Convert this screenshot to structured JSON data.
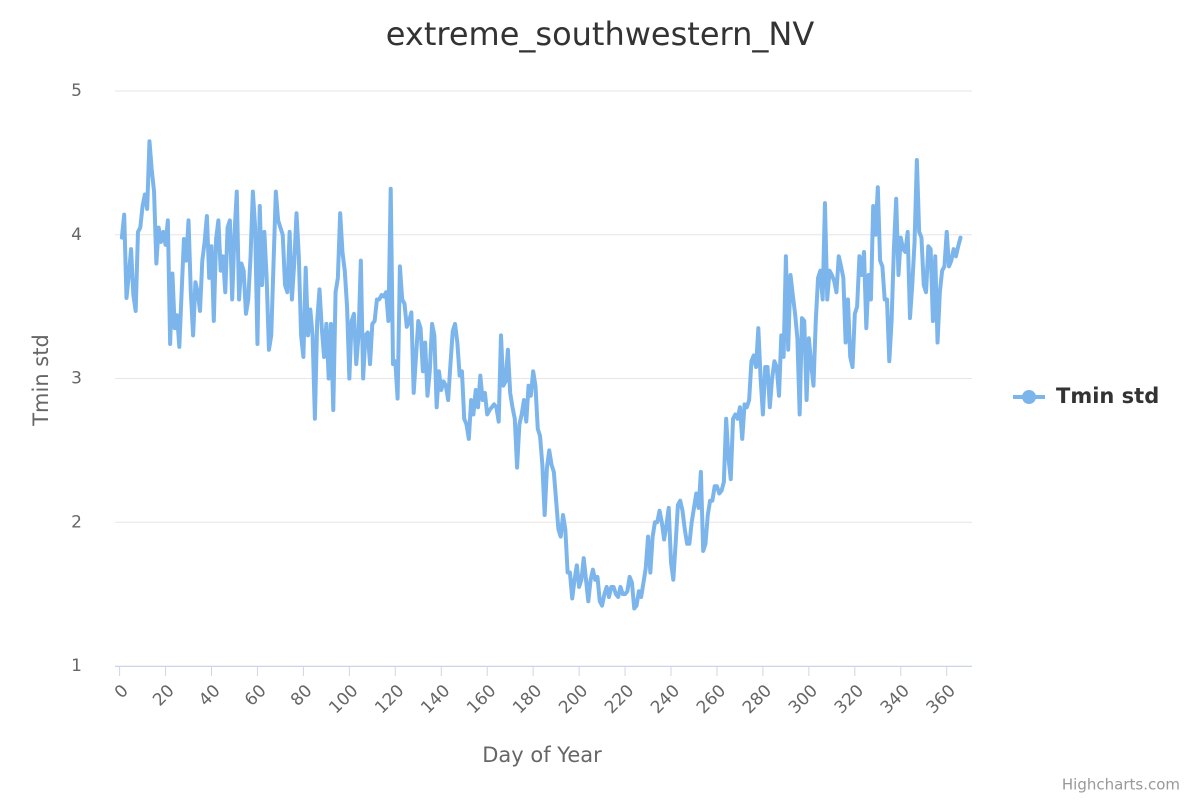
{
  "chart_data": {
    "type": "line",
    "title": "extreme_southwestern_NV",
    "x_label": "Day of Year",
    "y_label": "Tmin std",
    "credits": "Highcharts.com",
    "xlim": [
      -2,
      371
    ],
    "ylim": [
      1,
      5
    ],
    "xticks": [
      0,
      20,
      40,
      60,
      80,
      100,
      120,
      140,
      160,
      180,
      200,
      220,
      240,
      260,
      280,
      300,
      320,
      340,
      360
    ],
    "yticks": [
      1,
      2,
      3,
      4,
      5
    ],
    "grid": true,
    "legend": "right",
    "x": [
      1,
      2,
      3,
      4,
      5,
      6,
      7,
      8,
      9,
      10,
      11,
      12,
      13,
      14,
      15,
      16,
      17,
      18,
      19,
      20,
      21,
      22,
      23,
      24,
      25,
      26,
      27,
      28,
      29,
      30,
      31,
      32,
      33,
      34,
      35,
      36,
      37,
      38,
      39,
      40,
      41,
      42,
      43,
      44,
      45,
      46,
      47,
      48,
      49,
      50,
      51,
      52,
      53,
      54,
      55,
      56,
      57,
      58,
      59,
      60,
      61,
      62,
      63,
      64,
      65,
      66,
      67,
      68,
      69,
      70,
      71,
      72,
      73,
      74,
      75,
      76,
      77,
      78,
      79,
      80,
      81,
      82,
      83,
      84,
      85,
      86,
      87,
      88,
      89,
      90,
      91,
      92,
      93,
      94,
      95,
      96,
      97,
      98,
      99,
      100,
      101,
      102,
      103,
      104,
      105,
      106,
      107,
      108,
      109,
      110,
      111,
      112,
      113,
      114,
      115,
      116,
      117,
      118,
      119,
      120,
      121,
      122,
      123,
      124,
      125,
      126,
      127,
      128,
      129,
      130,
      131,
      132,
      133,
      134,
      135,
      136,
      137,
      138,
      139,
      140,
      141,
      142,
      143,
      144,
      145,
      146,
      147,
      148,
      149,
      150,
      151,
      152,
      153,
      154,
      155,
      156,
      157,
      158,
      159,
      160,
      161,
      162,
      163,
      164,
      165,
      166,
      167,
      168,
      169,
      170,
      171,
      172,
      173,
      174,
      175,
      176,
      177,
      178,
      179,
      180,
      181,
      182,
      183,
      184,
      185,
      186,
      187,
      188,
      189,
      190,
      191,
      192,
      193,
      194,
      195,
      196,
      197,
      198,
      199,
      200,
      201,
      202,
      203,
      204,
      205,
      206,
      207,
      208,
      209,
      210,
      211,
      212,
      213,
      214,
      215,
      216,
      217,
      218,
      219,
      220,
      221,
      222,
      223,
      224,
      225,
      226,
      227,
      228,
      229,
      230,
      231,
      232,
      233,
      234,
      235,
      236,
      237,
      238,
      239,
      240,
      241,
      242,
      243,
      244,
      245,
      246,
      247,
      248,
      249,
      250,
      251,
      252,
      253,
      254,
      255,
      256,
      257,
      258,
      259,
      260,
      261,
      262,
      263,
      264,
      265,
      266,
      267,
      268,
      269,
      270,
      271,
      272,
      273,
      274,
      275,
      276,
      277,
      278,
      279,
      280,
      281,
      282,
      283,
      284,
      285,
      286,
      287,
      288,
      289,
      290,
      291,
      292,
      293,
      294,
      295,
      296,
      297,
      298,
      299,
      300,
      301,
      302,
      303,
      304,
      305,
      306,
      307,
      308,
      309,
      310,
      311,
      312,
      313,
      314,
      315,
      316,
      317,
      318,
      319,
      320,
      321,
      322,
      323,
      324,
      325,
      326,
      327,
      328,
      329,
      330,
      331,
      332,
      333,
      334,
      335,
      336,
      337,
      338,
      339,
      340,
      341,
      342,
      343,
      344,
      345,
      346,
      347,
      348,
      349,
      350,
      351,
      352,
      353,
      354,
      355,
      356,
      357,
      358,
      359,
      360,
      361,
      362,
      363,
      364,
      365,
      366
    ],
    "series": [
      {
        "name": "Tmin std",
        "color": "#7cb5ec",
        "values": [
          3.98,
          4.14,
          3.56,
          3.72,
          3.9,
          3.58,
          3.47,
          4.02,
          4.05,
          4.2,
          4.28,
          4.18,
          4.65,
          4.45,
          4.3,
          3.8,
          4.05,
          3.95,
          4.02,
          3.93,
          4.1,
          3.24,
          3.73,
          3.35,
          3.44,
          3.22,
          3.6,
          3.97,
          3.82,
          4.1,
          3.6,
          3.3,
          3.67,
          3.6,
          3.47,
          3.82,
          3.95,
          4.13,
          3.7,
          3.92,
          3.4,
          3.97,
          4.1,
          3.75,
          3.85,
          3.6,
          4.05,
          4.1,
          3.55,
          4.0,
          4.3,
          3.55,
          3.8,
          3.75,
          3.45,
          3.55,
          3.85,
          4.3,
          4.05,
          3.24,
          4.2,
          3.65,
          4.02,
          3.7,
          3.2,
          3.3,
          3.8,
          4.3,
          4.1,
          4.05,
          4.0,
          3.65,
          3.6,
          4.02,
          3.55,
          3.8,
          4.15,
          3.85,
          3.3,
          3.15,
          3.77,
          3.3,
          3.48,
          3.3,
          2.72,
          3.4,
          3.62,
          3.35,
          3.15,
          3.38,
          3.0,
          3.38,
          2.78,
          3.6,
          3.7,
          4.15,
          3.88,
          3.75,
          3.5,
          3.0,
          3.4,
          3.45,
          3.1,
          3.3,
          3.82,
          3.0,
          3.3,
          3.32,
          3.1,
          3.38,
          3.4,
          3.55,
          3.55,
          3.58,
          3.57,
          3.6,
          3.4,
          4.32,
          3.1,
          3.12,
          2.86,
          3.78,
          3.55,
          3.52,
          3.36,
          3.4,
          3.46,
          2.9,
          3.15,
          3.4,
          3.35,
          3.05,
          3.25,
          2.88,
          3.05,
          3.38,
          3.3,
          2.8,
          3.05,
          2.92,
          2.98,
          2.95,
          2.85,
          3.1,
          3.33,
          3.38,
          3.25,
          3.02,
          3.05,
          2.72,
          2.68,
          2.58,
          2.85,
          2.75,
          2.92,
          2.8,
          3.02,
          2.85,
          2.9,
          2.75,
          2.78,
          2.8,
          2.82,
          2.8,
          2.7,
          3.3,
          2.95,
          2.98,
          3.2,
          2.9,
          2.8,
          2.72,
          2.38,
          2.68,
          2.75,
          2.85,
          2.7,
          2.95,
          2.88,
          3.05,
          2.95,
          2.65,
          2.6,
          2.4,
          2.05,
          2.38,
          2.5,
          2.4,
          2.35,
          2.15,
          1.95,
          1.9,
          2.05,
          1.95,
          1.65,
          1.65,
          1.47,
          1.6,
          1.7,
          1.55,
          1.6,
          1.75,
          1.6,
          1.45,
          1.6,
          1.67,
          1.6,
          1.62,
          1.45,
          1.42,
          1.5,
          1.55,
          1.48,
          1.55,
          1.55,
          1.5,
          1.48,
          1.55,
          1.5,
          1.5,
          1.52,
          1.62,
          1.58,
          1.4,
          1.42,
          1.52,
          1.48,
          1.58,
          1.68,
          1.9,
          1.65,
          1.9,
          2.0,
          2.0,
          2.08,
          2.0,
          1.88,
          1.98,
          2.1,
          1.72,
          1.6,
          1.85,
          2.12,
          2.15,
          2.08,
          1.95,
          1.85,
          1.85,
          2.0,
          2.1,
          2.2,
          2.1,
          2.35,
          1.8,
          1.85,
          2.05,
          2.15,
          2.15,
          2.25,
          2.25,
          2.2,
          2.22,
          2.28,
          2.72,
          2.45,
          2.3,
          2.72,
          2.75,
          2.72,
          2.8,
          2.58,
          2.82,
          2.8,
          2.85,
          3.12,
          3.16,
          3.08,
          3.35,
          3.0,
          2.75,
          3.08,
          3.08,
          2.8,
          3.0,
          3.12,
          3.08,
          2.88,
          3.3,
          3.15,
          3.85,
          3.2,
          3.72,
          3.58,
          3.45,
          3.28,
          2.75,
          3.42,
          3.4,
          2.85,
          3.28,
          3.1,
          2.95,
          3.4,
          3.7,
          3.75,
          3.55,
          4.22,
          3.55,
          3.75,
          3.72,
          3.68,
          3.6,
          3.85,
          3.78,
          3.7,
          3.25,
          3.55,
          3.15,
          3.08,
          3.45,
          3.5,
          3.85,
          3.72,
          3.88,
          3.35,
          3.72,
          3.55,
          4.2,
          4.0,
          4.33,
          3.82,
          3.78,
          3.55,
          3.55,
          3.12,
          3.4,
          3.9,
          4.25,
          3.72,
          3.98,
          3.9,
          3.88,
          4.02,
          3.42,
          3.65,
          3.95,
          4.52,
          4.02,
          3.98,
          3.65,
          3.6,
          3.92,
          3.9,
          3.4,
          3.85,
          3.25,
          3.6,
          3.75,
          3.78,
          4.02,
          3.78,
          3.82,
          3.9,
          3.85,
          3.92,
          3.98
        ]
      }
    ]
  }
}
